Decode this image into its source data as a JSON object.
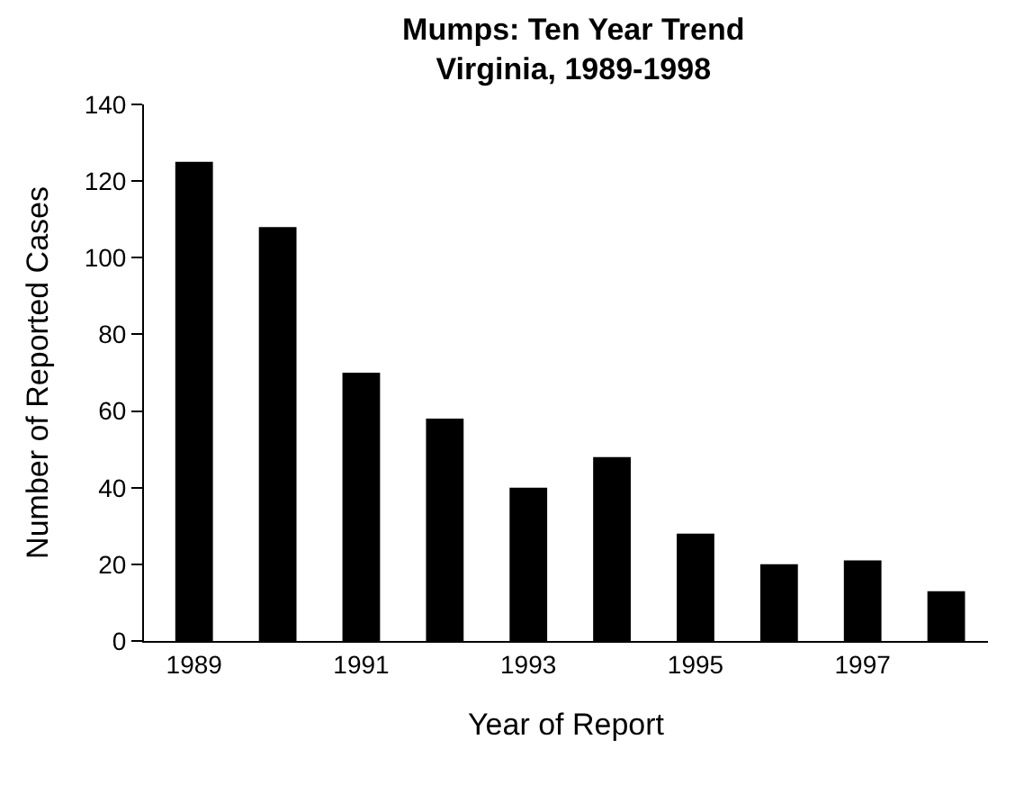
{
  "chart_data": {
    "type": "bar",
    "title": "Mumps: Ten Year Trend\nVirginia, 1989-1998",
    "xlabel": "Year of Report",
    "ylabel": "Number of Reported Cases",
    "categories": [
      "1989",
      null,
      "1991",
      null,
      "1993",
      null,
      "1995",
      null,
      "1997",
      null
    ],
    "values": [
      125,
      108,
      70,
      58,
      40,
      48,
      28,
      20,
      21,
      13
    ],
    "color": "#000000",
    "ylim": [
      0,
      140
    ],
    "yticks": [
      0,
      20,
      40,
      60,
      80,
      100,
      120,
      140
    ]
  }
}
